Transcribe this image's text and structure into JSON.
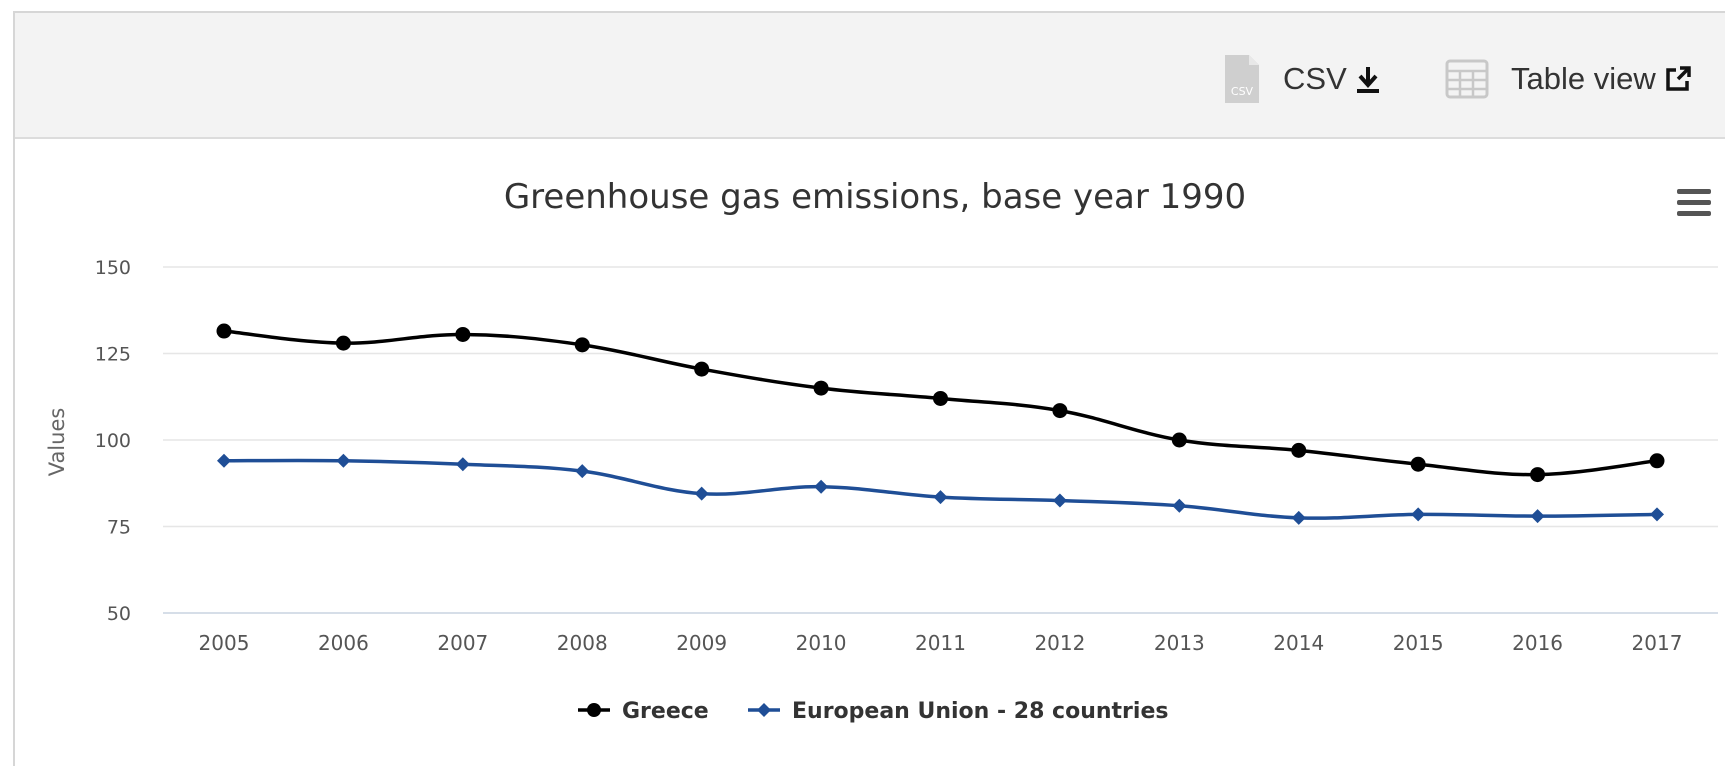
{
  "toolbar": {
    "csv_label": "CSV",
    "csv_icon_text": "CSV",
    "table_label": "Table view"
  },
  "colors": {
    "greece": "#000000",
    "eu": "#1f4e96",
    "grid": "#e6e6e6",
    "axis_text": "#555555",
    "toolbar_bg": "#f3f3f3"
  },
  "chart_data": {
    "type": "line",
    "title": "Greenhouse gas emissions, base year 1990",
    "ylabel": "Values",
    "xlabel": "",
    "ylim": [
      50,
      150
    ],
    "yticks": [
      50,
      75,
      100,
      125,
      150
    ],
    "categories": [
      "2005",
      "2006",
      "2007",
      "2008",
      "2009",
      "2010",
      "2011",
      "2012",
      "2013",
      "2014",
      "2015",
      "2016",
      "2017"
    ],
    "grid": true,
    "legend_position": "bottom-center",
    "series": [
      {
        "name": "Greece",
        "color": "#000000",
        "marker": "circle",
        "values": [
          131.5,
          128,
          130.5,
          127.5,
          120.5,
          115,
          112,
          108.5,
          100,
          97,
          93,
          90,
          94
        ]
      },
      {
        "name": "European Union - 28 countries",
        "color": "#1f4e96",
        "marker": "diamond",
        "values": [
          94,
          94,
          93,
          91,
          84.5,
          86.5,
          83.5,
          82.5,
          81,
          77.5,
          78.5,
          78,
          78.5
        ]
      }
    ]
  }
}
